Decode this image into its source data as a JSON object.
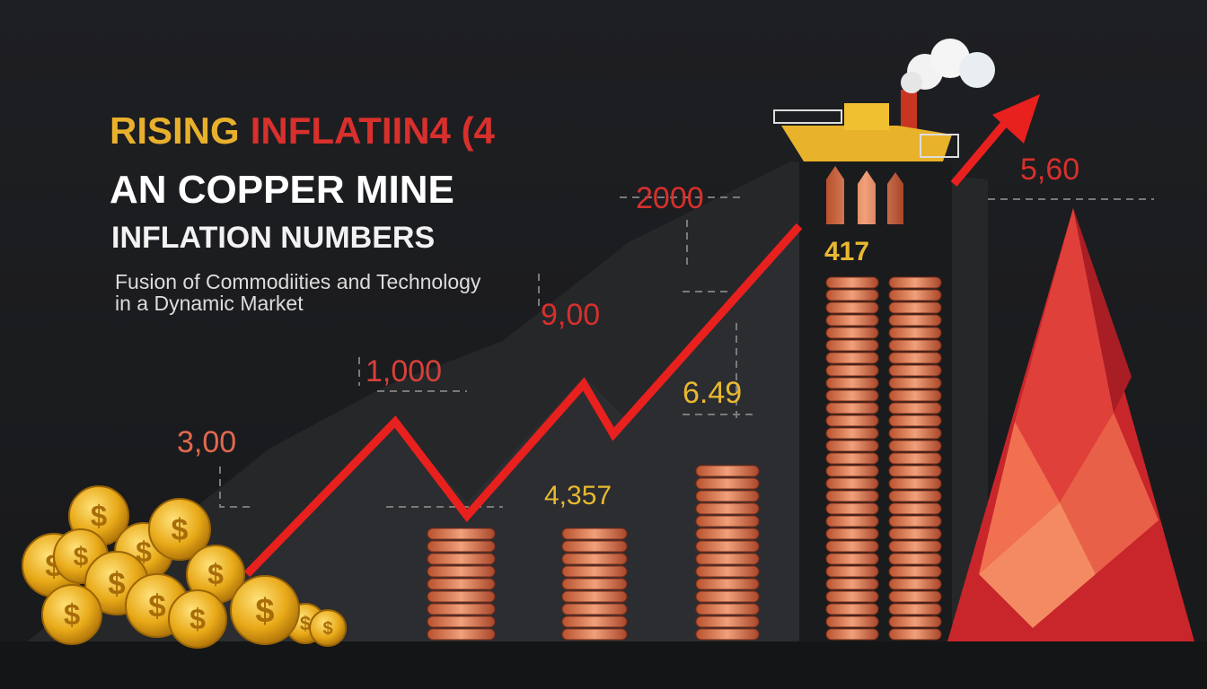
{
  "title": {
    "line1": [
      "RISING",
      "INFLATIIN4 (4"
    ],
    "line2": "AN COPPER MINE",
    "line3": "INFLATION NUMBERS"
  },
  "subtitle": [
    "Fusion of Commodiities and Technology",
    "in a Dynamic Market"
  ],
  "labels": [
    "3,00",
    "1,000",
    "9,00",
    "2000",
    "5,60",
    "417",
    "6.49",
    "4,357"
  ],
  "coin_symbol": "$"
}
